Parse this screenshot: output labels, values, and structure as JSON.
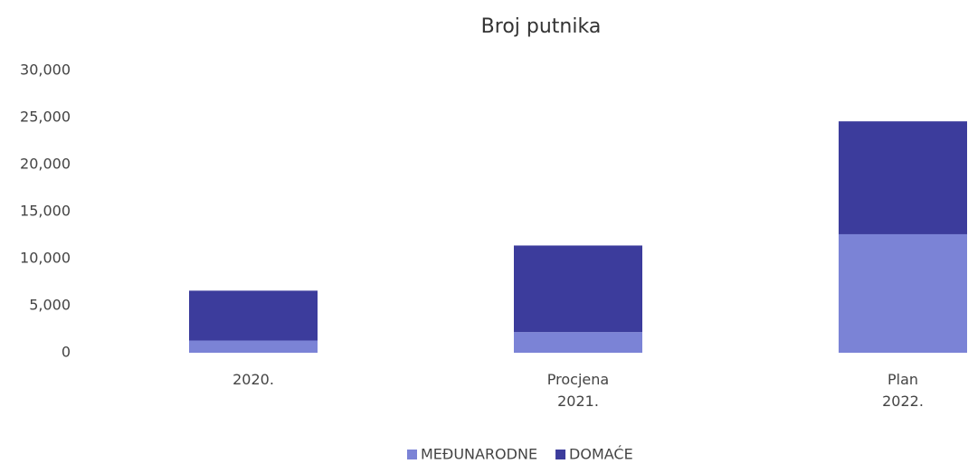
{
  "chart_data": {
    "type": "bar",
    "stacked": true,
    "title": "Broj putnika",
    "categories": [
      "2020.",
      "Procjena\n2021.",
      "Plan\n2022."
    ],
    "series": [
      {
        "name": "MEĐUNARODNE",
        "color": "#7b83d6",
        "values": [
          1300,
          2200,
          12600
        ]
      },
      {
        "name": "DOMAĆE",
        "color": "#3c3c9c",
        "values": [
          5300,
          9200,
          12000
        ]
      }
    ],
    "ylim": [
      0,
      30000
    ],
    "yticks": [
      0,
      {
        "value": 5000,
        "label": "5,000"
      },
      {
        "value": 10000,
        "label": "10,000"
      },
      {
        "value": 15000,
        "label": "15,000"
      },
      {
        "value": 20000,
        "label": "20,000"
      },
      {
        "value": 25000,
        "label": "25,000"
      },
      {
        "value": 30000,
        "label": "30,000"
      }
    ],
    "grid": false,
    "legend": "bottom"
  }
}
